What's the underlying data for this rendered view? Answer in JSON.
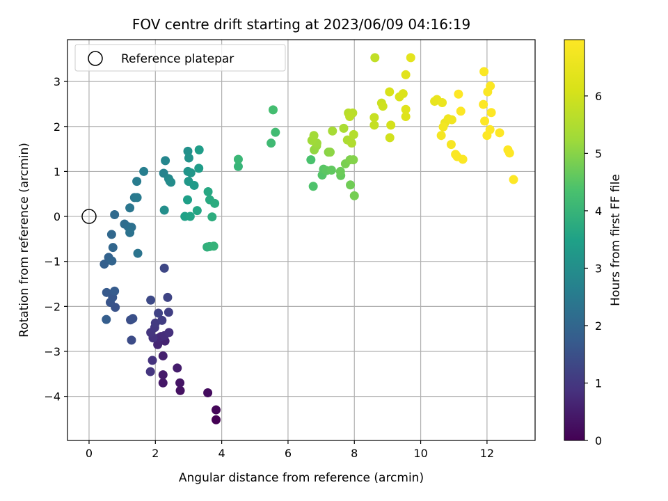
{
  "chart_data": {
    "type": "scatter",
    "title": "FOV centre drift starting at 2023/06/09 04:16:19",
    "xlabel": "Angular distance from reference (arcmin)",
    "ylabel": "Rotation from reference (arcmin)",
    "xlim": [
      -0.65,
      13.45
    ],
    "ylim": [
      -4.98,
      3.93
    ],
    "x_ticks": [
      0,
      2,
      4,
      6,
      8,
      10,
      12
    ],
    "y_ticks": [
      -4,
      -3,
      -2,
      -1,
      0,
      1,
      2,
      3
    ],
    "grid": true,
    "legend": {
      "position": "top-left",
      "entries": [
        "Reference platepar"
      ]
    },
    "reference_point": {
      "x": 0,
      "y": 0
    },
    "colorbar": {
      "label": "Hours from first FF file",
      "colormap": "viridis",
      "range": [
        0,
        6.98
      ],
      "ticks": [
        0,
        1,
        2,
        3,
        4,
        5,
        6
      ]
    },
    "points": [
      {
        "x": 3.83,
        "y": -4.52,
        "h": 0.0
      },
      {
        "x": 3.83,
        "y": -4.3,
        "h": 0.1
      },
      {
        "x": 3.58,
        "y": -3.92,
        "h": 0.2
      },
      {
        "x": 2.75,
        "y": -3.87,
        "h": 0.3
      },
      {
        "x": 2.74,
        "y": -3.7,
        "h": 0.35
      },
      {
        "x": 2.23,
        "y": -3.7,
        "h": 0.4
      },
      {
        "x": 2.23,
        "y": -3.52,
        "h": 0.45
      },
      {
        "x": 2.66,
        "y": -3.37,
        "h": 0.5
      },
      {
        "x": 2.23,
        "y": -3.1,
        "h": 0.55
      },
      {
        "x": 2.29,
        "y": -2.77,
        "h": 0.6
      },
      {
        "x": 2.07,
        "y": -2.85,
        "h": 0.65
      },
      {
        "x": 2.1,
        "y": -2.7,
        "h": 0.7
      },
      {
        "x": 2.17,
        "y": -2.67,
        "h": 0.75
      },
      {
        "x": 2.27,
        "y": -2.65,
        "h": 0.8
      },
      {
        "x": 2.41,
        "y": -2.58,
        "h": 0.85
      },
      {
        "x": 1.93,
        "y": -2.7,
        "h": 0.9
      },
      {
        "x": 1.86,
        "y": -2.58,
        "h": 0.95
      },
      {
        "x": 1.98,
        "y": -2.47,
        "h": 1.0
      },
      {
        "x": 2.0,
        "y": -2.37,
        "h": 1.05
      },
      {
        "x": 2.2,
        "y": -2.31,
        "h": 1.1
      },
      {
        "x": 2.4,
        "y": -2.13,
        "h": 1.15
      },
      {
        "x": 2.09,
        "y": -2.15,
        "h": 1.2
      },
      {
        "x": 2.37,
        "y": -1.8,
        "h": 1.25
      },
      {
        "x": 2.27,
        "y": -1.15,
        "h": 1.3
      },
      {
        "x": 1.86,
        "y": -1.86,
        "h": 1.35
      },
      {
        "x": 1.91,
        "y": -3.2,
        "h": 0.9
      },
      {
        "x": 1.85,
        "y": -3.45,
        "h": 0.95
      },
      {
        "x": 1.28,
        "y": -2.75,
        "h": 1.4
      },
      {
        "x": 1.25,
        "y": -2.3,
        "h": 1.45
      },
      {
        "x": 1.32,
        "y": -2.27,
        "h": 1.5
      },
      {
        "x": 0.79,
        "y": -2.02,
        "h": 1.55
      },
      {
        "x": 0.64,
        "y": -1.91,
        "h": 1.6
      },
      {
        "x": 0.71,
        "y": -1.8,
        "h": 1.65
      },
      {
        "x": 0.53,
        "y": -1.69,
        "h": 1.7
      },
      {
        "x": 0.77,
        "y": -1.66,
        "h": 1.75
      },
      {
        "x": 0.52,
        "y": -2.29,
        "h": 1.8
      },
      {
        "x": 0.46,
        "y": -1.06,
        "h": 1.85
      },
      {
        "x": 0.59,
        "y": -0.91,
        "h": 1.9
      },
      {
        "x": 0.69,
        "y": -0.99,
        "h": 1.95
      },
      {
        "x": 0.72,
        "y": -0.69,
        "h": 2.0
      },
      {
        "x": 0.68,
        "y": -0.4,
        "h": 2.05
      },
      {
        "x": 0.77,
        "y": 0.04,
        "h": 2.1
      },
      {
        "x": 1.07,
        "y": -0.17,
        "h": 2.15
      },
      {
        "x": 1.18,
        "y": -0.23,
        "h": 2.2
      },
      {
        "x": 1.28,
        "y": -0.24,
        "h": 2.25
      },
      {
        "x": 1.23,
        "y": -0.36,
        "h": 2.3
      },
      {
        "x": 1.47,
        "y": -0.82,
        "h": 2.35
      },
      {
        "x": 1.23,
        "y": 0.19,
        "h": 2.4
      },
      {
        "x": 1.37,
        "y": 0.42,
        "h": 2.45
      },
      {
        "x": 1.45,
        "y": 0.42,
        "h": 2.5
      },
      {
        "x": 1.44,
        "y": 0.78,
        "h": 2.55
      },
      {
        "x": 1.65,
        "y": 1.0,
        "h": 2.6
      },
      {
        "x": 2.25,
        "y": 0.96,
        "h": 2.7
      },
      {
        "x": 2.3,
        "y": 1.24,
        "h": 2.8
      },
      {
        "x": 2.4,
        "y": 0.84,
        "h": 2.85
      },
      {
        "x": 2.44,
        "y": 0.78,
        "h": 2.9
      },
      {
        "x": 2.47,
        "y": 0.76,
        "h": 2.95
      },
      {
        "x": 2.27,
        "y": 0.14,
        "h": 3.0
      },
      {
        "x": 2.98,
        "y": 1.45,
        "h": 3.05
      },
      {
        "x": 3.01,
        "y": 1.3,
        "h": 3.1
      },
      {
        "x": 2.98,
        "y": 1.0,
        "h": 3.15
      },
      {
        "x": 3.07,
        "y": 0.97,
        "h": 3.2
      },
      {
        "x": 3.0,
        "y": 0.78,
        "h": 3.25
      },
      {
        "x": 3.17,
        "y": 0.69,
        "h": 3.3
      },
      {
        "x": 3.31,
        "y": 1.07,
        "h": 3.35
      },
      {
        "x": 3.32,
        "y": 1.48,
        "h": 3.4
      },
      {
        "x": 2.97,
        "y": 0.37,
        "h": 3.45
      },
      {
        "x": 2.89,
        "y": 0.0,
        "h": 3.5
      },
      {
        "x": 3.05,
        "y": 0.0,
        "h": 3.55
      },
      {
        "x": 3.26,
        "y": 0.13,
        "h": 3.6
      },
      {
        "x": 3.59,
        "y": 0.55,
        "h": 3.65
      },
      {
        "x": 3.64,
        "y": 0.37,
        "h": 3.7
      },
      {
        "x": 3.79,
        "y": 0.29,
        "h": 3.75
      },
      {
        "x": 3.71,
        "y": -0.01,
        "h": 3.8
      },
      {
        "x": 3.56,
        "y": -0.68,
        "h": 3.85
      },
      {
        "x": 3.63,
        "y": -0.67,
        "h": 3.9
      },
      {
        "x": 3.76,
        "y": -0.66,
        "h": 3.95
      },
      {
        "x": 4.5,
        "y": 1.11,
        "h": 4.0
      },
      {
        "x": 4.5,
        "y": 1.27,
        "h": 4.05
      },
      {
        "x": 5.49,
        "y": 1.63,
        "h": 4.15
      },
      {
        "x": 5.62,
        "y": 1.87,
        "h": 4.2
      },
      {
        "x": 5.55,
        "y": 2.37,
        "h": 4.25
      },
      {
        "x": 6.69,
        "y": 1.26,
        "h": 4.35
      },
      {
        "x": 6.76,
        "y": 0.67,
        "h": 4.4
      },
      {
        "x": 7.03,
        "y": 0.92,
        "h": 4.45
      },
      {
        "x": 7.07,
        "y": 1.05,
        "h": 4.5
      },
      {
        "x": 7.16,
        "y": 1.02,
        "h": 4.55
      },
      {
        "x": 7.31,
        "y": 1.03,
        "h": 4.6
      },
      {
        "x": 7.59,
        "y": 0.91,
        "h": 4.65
      },
      {
        "x": 7.58,
        "y": 1.0,
        "h": 4.7
      },
      {
        "x": 7.88,
        "y": 0.7,
        "h": 4.75
      },
      {
        "x": 8.0,
        "y": 0.46,
        "h": 4.8
      },
      {
        "x": 7.73,
        "y": 1.17,
        "h": 4.85
      },
      {
        "x": 7.87,
        "y": 1.26,
        "h": 4.9
      },
      {
        "x": 7.97,
        "y": 1.26,
        "h": 4.95
      },
      {
        "x": 7.22,
        "y": 1.43,
        "h": 5.0
      },
      {
        "x": 7.27,
        "y": 1.43,
        "h": 5.05
      },
      {
        "x": 6.79,
        "y": 1.48,
        "h": 5.1
      },
      {
        "x": 6.86,
        "y": 1.57,
        "h": 5.15
      },
      {
        "x": 6.87,
        "y": 1.63,
        "h": 5.2
      },
      {
        "x": 6.72,
        "y": 1.69,
        "h": 5.25
      },
      {
        "x": 6.78,
        "y": 1.8,
        "h": 5.3
      },
      {
        "x": 7.34,
        "y": 1.9,
        "h": 5.35
      },
      {
        "x": 7.68,
        "y": 1.96,
        "h": 5.4
      },
      {
        "x": 7.79,
        "y": 1.7,
        "h": 5.45
      },
      {
        "x": 7.92,
        "y": 1.63,
        "h": 5.5
      },
      {
        "x": 7.98,
        "y": 1.82,
        "h": 5.55
      },
      {
        "x": 7.82,
        "y": 2.3,
        "h": 5.6
      },
      {
        "x": 7.95,
        "y": 2.3,
        "h": 5.65
      },
      {
        "x": 7.86,
        "y": 2.22,
        "h": 5.7
      },
      {
        "x": 8.6,
        "y": 2.03,
        "h": 5.8
      },
      {
        "x": 8.6,
        "y": 2.2,
        "h": 5.85
      },
      {
        "x": 8.82,
        "y": 2.52,
        "h": 5.9
      },
      {
        "x": 8.86,
        "y": 2.45,
        "h": 5.95
      },
      {
        "x": 9.07,
        "y": 1.75,
        "h": 6.0
      },
      {
        "x": 9.1,
        "y": 2.03,
        "h": 6.05
      },
      {
        "x": 9.06,
        "y": 2.77,
        "h": 6.1
      },
      {
        "x": 9.36,
        "y": 2.66,
        "h": 6.15
      },
      {
        "x": 9.47,
        "y": 2.73,
        "h": 6.2
      },
      {
        "x": 9.55,
        "y": 2.22,
        "h": 6.25
      },
      {
        "x": 9.55,
        "y": 2.38,
        "h": 6.3
      },
      {
        "x": 9.55,
        "y": 3.15,
        "h": 6.35
      },
      {
        "x": 8.62,
        "y": 3.53,
        "h": 5.75
      },
      {
        "x": 9.7,
        "y": 3.53,
        "h": 6.4
      },
      {
        "x": 10.42,
        "y": 2.56,
        "h": 6.45
      },
      {
        "x": 10.49,
        "y": 2.6,
        "h": 6.5
      },
      {
        "x": 10.65,
        "y": 2.53,
        "h": 6.55
      },
      {
        "x": 10.73,
        "y": 2.08,
        "h": 6.6
      },
      {
        "x": 10.83,
        "y": 2.17,
        "h": 6.65
      },
      {
        "x": 10.94,
        "y": 2.15,
        "h": 6.7
      },
      {
        "x": 10.68,
        "y": 1.99,
        "h": 6.75
      },
      {
        "x": 10.62,
        "y": 1.8,
        "h": 6.8
      },
      {
        "x": 10.92,
        "y": 1.6,
        "h": 6.85
      },
      {
        "x": 11.05,
        "y": 1.38,
        "h": 6.9
      },
      {
        "x": 11.1,
        "y": 1.33,
        "h": 6.92
      },
      {
        "x": 11.27,
        "y": 1.27,
        "h": 6.94
      },
      {
        "x": 11.21,
        "y": 2.34,
        "h": 6.96
      },
      {
        "x": 11.14,
        "y": 2.72,
        "h": 6.98
      },
      {
        "x": 11.91,
        "y": 3.22,
        "h": 6.9
      },
      {
        "x": 12.02,
        "y": 2.77,
        "h": 6.92
      },
      {
        "x": 12.1,
        "y": 2.9,
        "h": 6.94
      },
      {
        "x": 11.89,
        "y": 2.49,
        "h": 6.96
      },
      {
        "x": 12.13,
        "y": 2.31,
        "h": 6.98
      },
      {
        "x": 11.93,
        "y": 2.12,
        "h": 6.98
      },
      {
        "x": 12.09,
        "y": 1.93,
        "h": 6.98
      },
      {
        "x": 12.0,
        "y": 1.8,
        "h": 6.98
      },
      {
        "x": 12.38,
        "y": 1.86,
        "h": 6.98
      },
      {
        "x": 12.63,
        "y": 1.48,
        "h": 6.98
      },
      {
        "x": 12.68,
        "y": 1.41,
        "h": 6.98
      },
      {
        "x": 12.8,
        "y": 0.82,
        "h": 6.98
      }
    ]
  }
}
